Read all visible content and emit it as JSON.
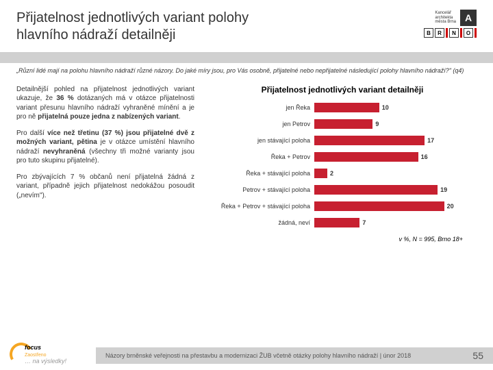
{
  "header": {
    "title_line1": "Přijatelnost jednotlivých variant polohy",
    "title_line2": "hlavního nádraží detailněji",
    "logo_text1": "Kancelář",
    "logo_text2": "architekta",
    "logo_text3": "města Brna",
    "brno": [
      "B",
      "R",
      "N",
      "O"
    ]
  },
  "question": "„Různí lidé mají na polohu hlavního nádraží různé názory. Do jaké míry jsou, pro Vás osobně, přijatelné nebo nepřijatelné následující polohy hlavního nádraží?\" (q4)",
  "paragraphs": {
    "p1a": "Detailnější pohled na přijatelnost jednotlivých variant ukazuje, že ",
    "p1b": "36 %",
    "p1c": " dotázaných má v otázce přijatelnosti variant přesunu hlavního nádraží vyhraněné mínění a je pro ně ",
    "p1d": "přijatelná pouze jedna z nabízených variant",
    "p1e": ".",
    "p2a": "Pro další ",
    "p2b": "více než třetinu (37 %) jsou přijatelné dvě z možných variant, pětina",
    "p2c": " je v otázce umístění hlavního nádraží ",
    "p2d": "nevyhraněná",
    "p2e": " (všechny tři možné varianty jsou pro tuto skupinu přijatelné).",
    "p3": "Pro zbývajících 7 % občanů není přijatelná žádná z variant, případně jejich přijatelnost nedokážou posoudit („nevím\")."
  },
  "chart": {
    "title": "Přijatelnost jednotlivých variant detailněji",
    "bar_color": "#c72030",
    "max": 25,
    "rows": [
      {
        "label": "jen Řeka",
        "value": 10
      },
      {
        "label": "jen Petrov",
        "value": 9
      },
      {
        "label": "jen stávající poloha",
        "value": 17
      },
      {
        "label": "Řeka + Petrov",
        "value": 16
      },
      {
        "label": "Řeka + stávající poloha",
        "value": 2
      },
      {
        "label": "Petrov + stávající poloha",
        "value": 19
      },
      {
        "label": "Řeka + Petrov + stávající poloha",
        "value": 20
      },
      {
        "label": "žádná, neví",
        "value": 7
      }
    ],
    "note": "v %, N = 995, Brno 18+"
  },
  "footer": {
    "brand1": "focus",
    "brand2": "Zaostřeno",
    "brand3": "… na výsledky!",
    "text": "Názory brněnské veřejnosti na přestavbu a modernizaci ŽUB včetně otázky polohy hlavního nádraží | únor 2018",
    "page": "55"
  }
}
